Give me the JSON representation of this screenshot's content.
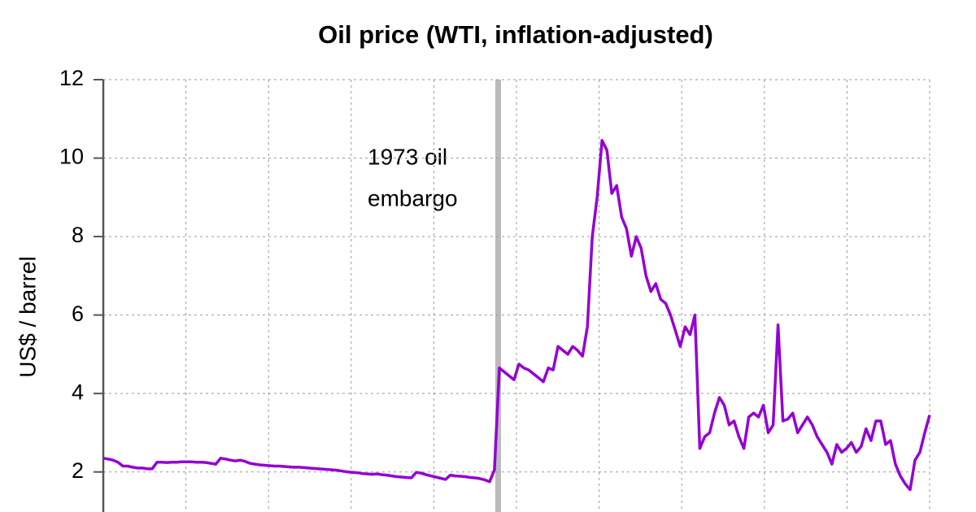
{
  "chart_data": {
    "type": "line",
    "title": "Oil price (WTI, inflation-adjusted)",
    "y_label": "US$ / barrel",
    "annotation": [
      "1973 oil",
      "embargo"
    ],
    "ylim": [
      1,
      12
    ],
    "yticks": [
      2,
      4,
      6,
      8,
      10,
      12
    ],
    "grid": true,
    "series": [
      {
        "name": "WTI",
        "color": "#9400d3",
        "values": [
          2.35,
          2.33,
          2.3,
          2.25,
          2.15,
          2.15,
          2.12,
          2.1,
          2.1,
          2.08,
          2.08,
          2.25,
          2.25,
          2.24,
          2.25,
          2.25,
          2.26,
          2.26,
          2.26,
          2.25,
          2.25,
          2.24,
          2.22,
          2.2,
          2.35,
          2.33,
          2.3,
          2.28,
          2.3,
          2.27,
          2.22,
          2.2,
          2.18,
          2.17,
          2.16,
          2.15,
          2.15,
          2.14,
          2.13,
          2.12,
          2.12,
          2.11,
          2.1,
          2.09,
          2.08,
          2.07,
          2.06,
          2.05,
          2.04,
          2.02,
          2.0,
          1.99,
          1.98,
          1.96,
          1.95,
          1.94,
          1.95,
          1.93,
          1.92,
          1.9,
          1.88,
          1.87,
          1.86,
          1.85,
          1.99,
          1.97,
          1.93,
          1.9,
          1.87,
          1.84,
          1.81,
          1.92,
          1.9,
          1.89,
          1.88,
          1.86,
          1.85,
          1.83,
          1.8,
          1.75,
          2.05,
          4.65,
          4.55,
          4.45,
          4.35,
          4.75,
          4.65,
          4.6,
          4.5,
          4.4,
          4.3,
          4.65,
          4.6,
          5.2,
          5.1,
          5.0,
          5.2,
          5.1,
          4.95,
          5.7,
          8.0,
          9.0,
          10.45,
          10.2,
          9.1,
          9.3,
          8.5,
          8.2,
          7.5,
          8.0,
          7.7,
          7.0,
          6.6,
          6.8,
          6.4,
          6.3,
          6.0,
          5.6,
          5.2,
          5.7,
          5.5,
          6.0,
          2.6,
          2.9,
          3.0,
          3.5,
          3.9,
          3.7,
          3.2,
          3.3,
          2.9,
          2.6,
          3.4,
          3.5,
          3.4,
          3.7,
          3.0,
          3.2,
          5.75,
          3.3,
          3.35,
          3.5,
          3.0,
          3.2,
          3.4,
          3.2,
          2.9,
          2.7,
          2.5,
          2.2,
          2.7,
          2.5,
          2.6,
          2.75,
          2.5,
          2.65,
          3.1,
          2.8,
          3.3,
          3.3,
          2.7,
          2.8,
          2.2,
          1.9,
          1.7,
          1.55,
          2.3,
          2.5,
          3.0,
          3.45
        ]
      }
    ]
  }
}
